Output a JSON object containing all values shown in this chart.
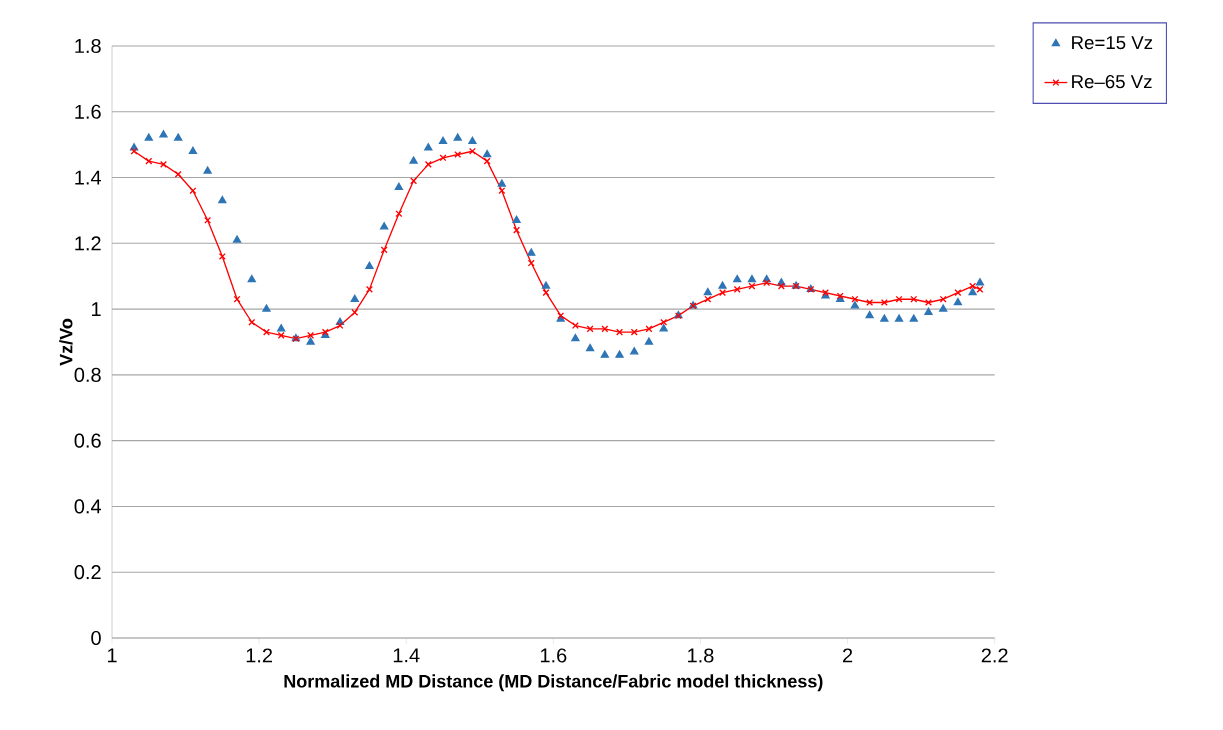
{
  "chart_data": {
    "type": "line",
    "xlabel": "Normalized MD Distance (MD Distance/Fabric model thickness)",
    "ylabel": "Vz/Vo",
    "xlim": [
      1,
      2.2
    ],
    "xticks": [
      1,
      1.2,
      1.4,
      1.6,
      1.8,
      2,
      2.2
    ],
    "ylim": [
      0,
      1.8
    ],
    "yticks": [
      0,
      0.2,
      0.4,
      0.6,
      0.8,
      1,
      1.2,
      1.4,
      1.6,
      1.8
    ],
    "grid": "y",
    "legend": "top right",
    "series": [
      {
        "name": "Re=15 Vz",
        "type": "scatter",
        "marker": "triangle",
        "color": "#2e75b6",
        "x": [
          1.03,
          1.05,
          1.07,
          1.09,
          1.11,
          1.13,
          1.15,
          1.17,
          1.19,
          1.21,
          1.23,
          1.25,
          1.27,
          1.29,
          1.31,
          1.33,
          1.35,
          1.37,
          1.39,
          1.41,
          1.43,
          1.45,
          1.47,
          1.49,
          1.51,
          1.53,
          1.55,
          1.57,
          1.59,
          1.61,
          1.63,
          1.65,
          1.67,
          1.69,
          1.71,
          1.73,
          1.75,
          1.77,
          1.79,
          1.81,
          1.83,
          1.85,
          1.87,
          1.89,
          1.91,
          1.93,
          1.95,
          1.97,
          1.99,
          2.01,
          2.03,
          2.05,
          2.07,
          2.09,
          2.11,
          2.13,
          2.15,
          2.17,
          2.18
        ],
        "values": [
          1.49,
          1.52,
          1.53,
          1.52,
          1.48,
          1.42,
          1.33,
          1.21,
          1.09,
          1.0,
          0.94,
          0.91,
          0.9,
          0.92,
          0.96,
          1.03,
          1.13,
          1.25,
          1.37,
          1.45,
          1.49,
          1.51,
          1.52,
          1.51,
          1.47,
          1.38,
          1.27,
          1.17,
          1.07,
          0.97,
          0.91,
          0.88,
          0.86,
          0.86,
          0.87,
          0.9,
          0.94,
          0.98,
          1.01,
          1.05,
          1.07,
          1.09,
          1.09,
          1.09,
          1.08,
          1.07,
          1.06,
          1.04,
          1.03,
          1.01,
          0.98,
          0.97,
          0.97,
          0.97,
          0.99,
          1.0,
          1.02,
          1.05,
          1.08
        ]
      },
      {
        "name": "Re–65 Vz",
        "marker": "cross",
        "color": "#ff0000",
        "x": [
          1.03,
          1.05,
          1.07,
          1.09,
          1.11,
          1.13,
          1.15,
          1.17,
          1.19,
          1.21,
          1.23,
          1.25,
          1.27,
          1.29,
          1.31,
          1.33,
          1.35,
          1.37,
          1.39,
          1.41,
          1.43,
          1.45,
          1.47,
          1.49,
          1.51,
          1.53,
          1.55,
          1.57,
          1.59,
          1.61,
          1.63,
          1.65,
          1.67,
          1.69,
          1.71,
          1.73,
          1.75,
          1.77,
          1.79,
          1.81,
          1.83,
          1.85,
          1.87,
          1.89,
          1.91,
          1.93,
          1.95,
          1.97,
          1.99,
          2.01,
          2.03,
          2.05,
          2.07,
          2.09,
          2.11,
          2.13,
          2.15,
          2.17,
          2.18
        ],
        "values": [
          1.48,
          1.45,
          1.44,
          1.41,
          1.36,
          1.27,
          1.16,
          1.03,
          0.96,
          0.93,
          0.92,
          0.91,
          0.92,
          0.93,
          0.95,
          0.99,
          1.06,
          1.18,
          1.29,
          1.39,
          1.44,
          1.46,
          1.47,
          1.48,
          1.45,
          1.36,
          1.24,
          1.14,
          1.05,
          0.98,
          0.95,
          0.94,
          0.94,
          0.93,
          0.93,
          0.94,
          0.96,
          0.98,
          1.01,
          1.03,
          1.05,
          1.06,
          1.07,
          1.08,
          1.07,
          1.07,
          1.06,
          1.05,
          1.04,
          1.03,
          1.02,
          1.02,
          1.03,
          1.03,
          1.02,
          1.03,
          1.05,
          1.07,
          1.06
        ]
      }
    ]
  }
}
